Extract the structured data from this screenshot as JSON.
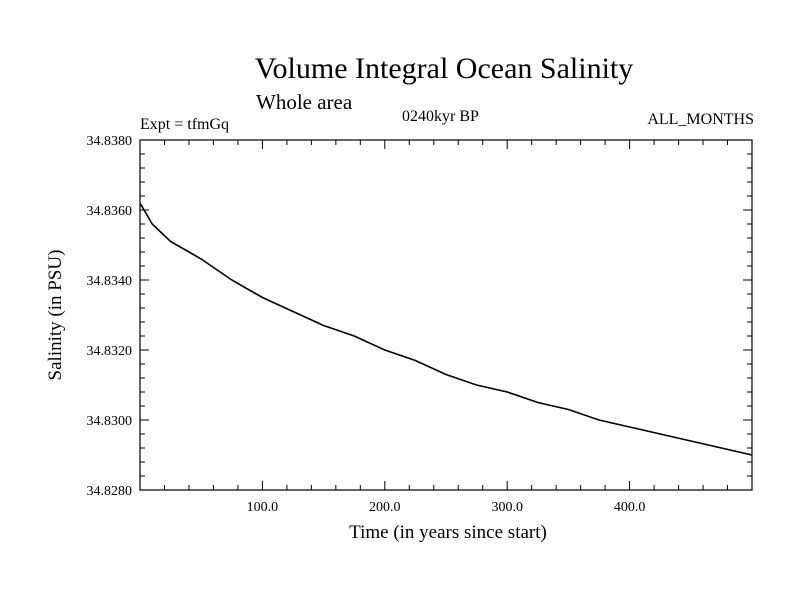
{
  "header": {
    "title": "Volume Integral Ocean Salinity",
    "subtitle": "Whole area",
    "experiment": "Expt = tfmGq",
    "period": "0240kyr BP",
    "months": "ALL_MONTHS"
  },
  "chart_data": {
    "type": "line",
    "title": "Volume Integral Ocean Salinity",
    "subtitle": "Whole area",
    "xlabel": "Time (in years since start)",
    "ylabel": "Salinity (in PSU)",
    "xlim": [
      0,
      500
    ],
    "ylim": [
      34.828,
      34.838
    ],
    "xticks": [
      100,
      200,
      300,
      400
    ],
    "xtick_labels": [
      "100.0",
      "200.0",
      "300.0",
      "400.0"
    ],
    "yticks": [
      34.828,
      34.83,
      34.832,
      34.834,
      34.836,
      34.838
    ],
    "ytick_labels": [
      "34.8280",
      "34.8300",
      "34.8320",
      "34.8340",
      "34.8360",
      "34.8380"
    ],
    "grid": false,
    "series": [
      {
        "color": "#000000",
        "x": [
          0,
          10,
          25,
          50,
          75,
          100,
          125,
          150,
          175,
          200,
          225,
          250,
          275,
          300,
          325,
          350,
          375,
          400,
          425,
          450,
          475,
          500
        ],
        "y": [
          34.8362,
          34.8356,
          34.8351,
          34.8346,
          34.834,
          34.8335,
          34.8331,
          34.8327,
          34.8324,
          34.832,
          34.8317,
          34.8313,
          34.831,
          34.8308,
          34.8305,
          34.8303,
          34.83,
          34.8298,
          34.8296,
          34.8294,
          34.8292,
          34.829
        ]
      }
    ]
  }
}
